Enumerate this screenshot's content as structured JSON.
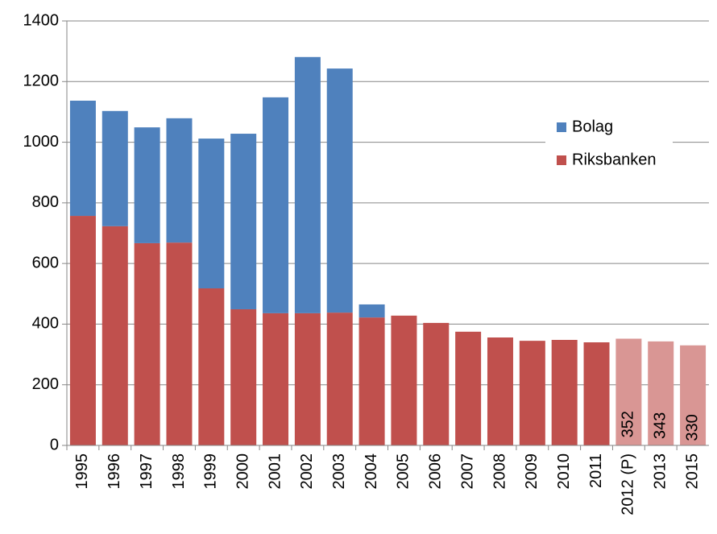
{
  "chart_data": {
    "type": "stacked-bar",
    "categories": [
      "1995",
      "1996",
      "1997",
      "1998",
      "1999",
      "2000",
      "2001",
      "2002",
      "2003",
      "2004",
      "2005",
      "2006",
      "2007",
      "2008",
      "2009",
      "2010",
      "2011",
      "2012 (P)",
      "2013",
      "2015"
    ],
    "series": [
      {
        "name": "Riksbanken",
        "color": "#c0504d",
        "colors": [
          "#c0504d",
          "#c0504d",
          "#c0504d",
          "#c0504d",
          "#c0504d",
          "#c0504d",
          "#c0504d",
          "#c0504d",
          "#c0504d",
          "#c0504d",
          "#c0504d",
          "#c0504d",
          "#c0504d",
          "#c0504d",
          "#c0504d",
          "#c0504d",
          "#c0504d",
          "#d99694",
          "#d99694",
          "#d99694"
        ],
        "show_labels": [
          false,
          false,
          false,
          false,
          false,
          false,
          false,
          false,
          false,
          false,
          false,
          false,
          false,
          false,
          false,
          false,
          false,
          true,
          true,
          true
        ],
        "values": [
          757,
          723,
          667,
          669,
          518,
          449,
          436,
          436,
          438,
          422,
          428,
          404,
          375,
          356,
          345,
          348,
          340,
          352,
          343,
          330
        ]
      },
      {
        "name": "Bolag",
        "color": "#4f81bd",
        "values": [
          380,
          380,
          382,
          410,
          494,
          579,
          712,
          845,
          805,
          43,
          0,
          0,
          0,
          0,
          0,
          0,
          0,
          0,
          0,
          0
        ]
      }
    ],
    "ylim": [
      0,
      1400
    ],
    "yticks": [
      0,
      200,
      400,
      600,
      800,
      1000,
      1200,
      1400
    ],
    "grid": true,
    "legend": "upper right"
  }
}
